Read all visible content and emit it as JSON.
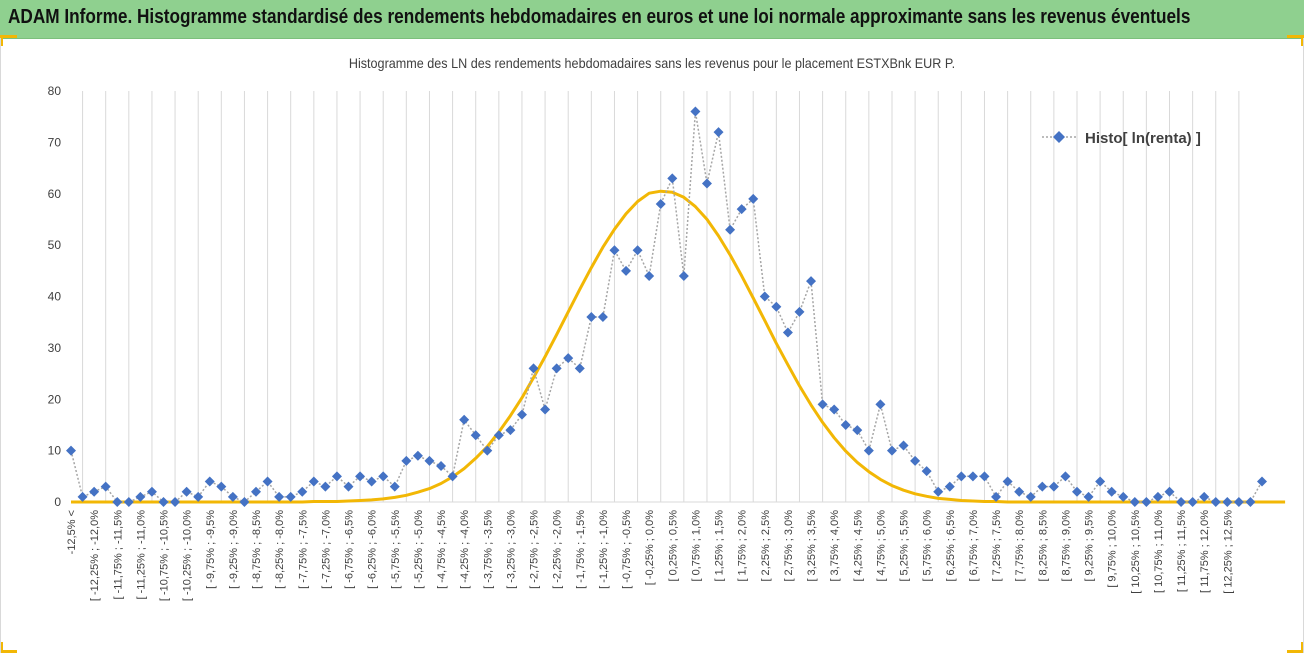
{
  "banner": {
    "title": "ADAM Informe. Histogramme standardisé des rendements hebdomadaires en euros et une loi normale approximante sans les revenus éventuels"
  },
  "colors": {
    "banner": "#8fd08f",
    "series": "#4472c4",
    "connector": "#a6a6a6",
    "normal_curve": "#f2b705",
    "grid": "#d9d9d9"
  },
  "chart_data": {
    "type": "line",
    "title": "Histogramme  des LN des rendements hebdomadaires sans les revenus pour le placement ESTXBnk EUR P.",
    "xlabel": "",
    "ylabel": "",
    "ylim": [
      0,
      80
    ],
    "yticks": [
      0,
      10,
      20,
      30,
      40,
      50,
      60,
      70,
      80
    ],
    "grid": "vertical",
    "legend_position": "top-right",
    "x_tick_labels": [
      "-12,5% <",
      "[ -12,25% ; -12,0%",
      "[ -11,75% ; -11,5%",
      "[ -11,25% ; -11,0%",
      "[ -10,75% ; -10,5%",
      "[ -10,25% ; -10,0%",
      "[ -9,75% ; -9,5%",
      "[ -9,25% ; -9,0%",
      "[ -8,75% ; -8,5%",
      "[ -8,25% ; -8,0%",
      "[ -7,75% ; -7,5%",
      "[ -7,25% ; -7,0%",
      "[ -6,75% ; -6,5%",
      "[ -6,25% ; -6,0%",
      "[ -5,75% ; -5,5%",
      "[ -5,25% ; -5,0%",
      "[ -4,75% ; -4,5%",
      "[ -4,25% ; -4,0%",
      "[ -3,75% ; -3,5%",
      "[ -3,25% ; -3,0%",
      "[ -2,75% ; -2,5%",
      "[ -2,25% ; -2,0%",
      "[ -1,75% ; -1,5%",
      "[ -1,25% ; -1,0%",
      "[ -0,75% ; -0,5%",
      "[ -0,25% ; 0,0%",
      "[ 0,25% ; 0,5%",
      "[ 0,75% ; 1,0%",
      "[ 1,25% ; 1,5%",
      "[ 1,75% ; 2,0%",
      "[ 2,25% ; 2,5%",
      "[ 2,75% ; 3,0%",
      "[ 3,25% ; 3,5%",
      "[ 3,75% ; 4,0%",
      "[ 4,25% ; 4,5%",
      "[ 4,75% ; 5,0%",
      "[ 5,25% ; 5,5%",
      "[ 5,75% ; 6,0%",
      "[ 6,25% ; 6,5%",
      "[ 6,75% ; 7,0%",
      "[ 7,25% ; 7,5%",
      "[ 7,75% ; 8,0%",
      "[ 8,25% ; 8,5%",
      "[ 8,75% ; 9,0%",
      "[ 9,25% ; 9,5%",
      "[ 9,75% ; 10,0%",
      "[ 10,25% ; 10,5%",
      "[ 10,75% ; 11,0%",
      "[ 11,25% ; 11,5%",
      "[ 11,75% ; 12,0%",
      "[ 12,25% ; 12,5%"
    ],
    "series": [
      {
        "name": "Histo[ ln(renta) ]",
        "style": "dotted line with diamond markers",
        "values": [
          10,
          1,
          2,
          3,
          0,
          0,
          1,
          2,
          0,
          0,
          2,
          1,
          4,
          3,
          1,
          0,
          2,
          4,
          1,
          1,
          2,
          4,
          3,
          5,
          3,
          5,
          4,
          5,
          3,
          8,
          9,
          8,
          7,
          5,
          16,
          13,
          10,
          13,
          14,
          17,
          26,
          18,
          26,
          28,
          26,
          36,
          36,
          49,
          45,
          49,
          44,
          58,
          63,
          44,
          76,
          62,
          72,
          53,
          57,
          59,
          40,
          38,
          33,
          37,
          43,
          19,
          18,
          15,
          14,
          10,
          19,
          10,
          11,
          8,
          6,
          2,
          3,
          5,
          5,
          5,
          1,
          4,
          2,
          1,
          3,
          3,
          5,
          2,
          1,
          4,
          2,
          1,
          0,
          0,
          1,
          2,
          0,
          0,
          1,
          0,
          0,
          0,
          0,
          4
        ]
      },
      {
        "name": "",
        "style": "smooth line, approximating normal distribution",
        "peak": 60.5,
        "values": [
          0,
          0,
          0,
          0,
          0,
          0,
          0,
          0,
          0,
          0,
          0,
          0,
          0,
          0,
          0,
          0,
          0,
          0,
          0,
          0,
          0,
          0.1,
          0.1,
          0.1,
          0.2,
          0.3,
          0.4,
          0.6,
          0.9,
          1.3,
          1.9,
          2.6,
          3.6,
          4.9,
          6.5,
          8.5,
          10.8,
          13.6,
          16.8,
          20.3,
          24.2,
          28.3,
          32.6,
          37,
          41.4,
          45.6,
          49.6,
          53.1,
          56.1,
          58.5,
          60.1,
          60.5,
          60.3,
          59.3,
          57.5,
          55,
          51.8,
          48.1,
          44,
          39.7,
          35.3,
          30.9,
          26.7,
          22.6,
          18.9,
          15.5,
          12.5,
          9.9,
          7.7,
          5.9,
          4.4,
          3.2,
          2.3,
          1.6,
          1.1,
          0.7,
          0.5,
          0.3,
          0.2,
          0.1,
          0.1,
          0,
          0,
          0,
          0,
          0,
          0,
          0,
          0,
          0,
          0,
          0,
          0,
          0,
          0,
          0,
          0,
          0,
          0,
          0,
          0,
          0,
          0,
          0,
          0,
          0
        ]
      }
    ]
  }
}
